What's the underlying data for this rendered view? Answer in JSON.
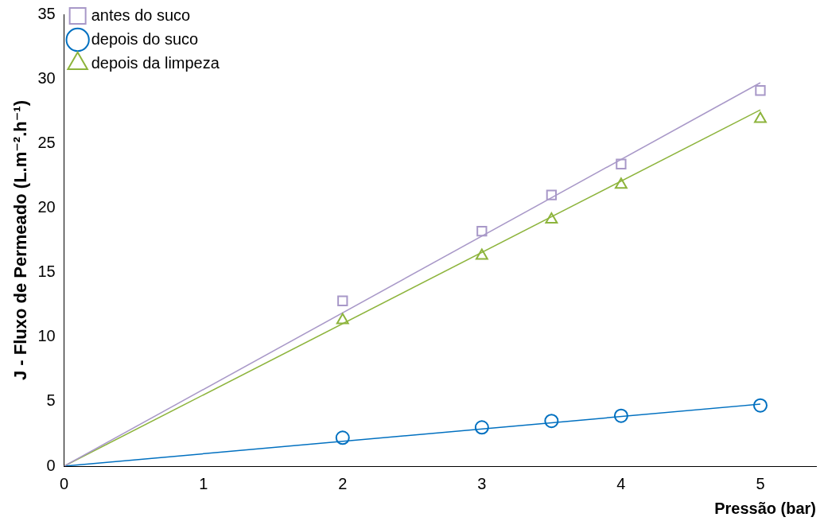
{
  "chart_data": {
    "type": "scatter",
    "xlabel": "Pressão (bar)",
    "ylabel": "J - Fluxo de Permeado (L.m⁻².h⁻¹)",
    "xlim": [
      0,
      5.4
    ],
    "ylim": [
      0,
      35
    ],
    "xticks": [
      0,
      1,
      2,
      3,
      4,
      5
    ],
    "yticks": [
      0,
      5,
      10,
      15,
      20,
      25,
      30,
      35
    ],
    "grid": false,
    "legend": "top left",
    "series": [
      {
        "name": "antes do suco",
        "color": "#a898c8",
        "marker": "square",
        "x": [
          2,
          3,
          3.5,
          4,
          5
        ],
        "values": [
          12.8,
          18.2,
          21.0,
          23.4,
          29.1
        ]
      },
      {
        "name": "depois do suco",
        "color": "#0070c0",
        "marker": "circle",
        "x": [
          2,
          3,
          3.5,
          4,
          5
        ],
        "values": [
          2.2,
          3.0,
          3.5,
          3.9,
          4.7
        ]
      },
      {
        "name": "depois da limpeza",
        "color": "#8db43c",
        "marker": "triangle",
        "x": [
          2,
          3,
          3.5,
          4,
          5
        ],
        "values": [
          11.3,
          16.3,
          19.1,
          21.8,
          26.9
        ]
      },
      {
        "type": "line",
        "color": "#a898c8",
        "marker": "none",
        "x": [
          0,
          5
        ],
        "values": [
          0,
          29.7
        ]
      },
      {
        "type": "line",
        "color": "#0070c0",
        "marker": "none",
        "x": [
          0,
          5
        ],
        "values": [
          0,
          4.8
        ]
      },
      {
        "type": "line",
        "color": "#8db43c",
        "marker": "none",
        "x": [
          0,
          5
        ],
        "values": [
          0,
          27.6
        ]
      }
    ]
  }
}
